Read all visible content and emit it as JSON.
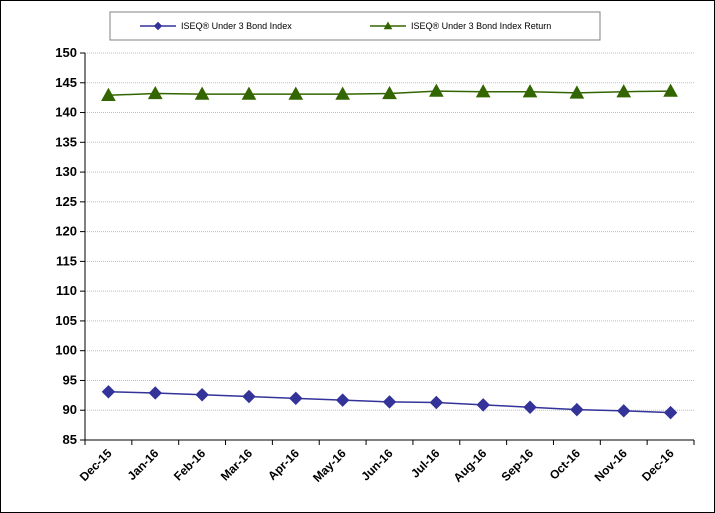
{
  "chart_data": {
    "type": "line",
    "title": "",
    "xlabel": "",
    "ylabel": "",
    "categories": [
      "Dec-15",
      "Jan-16",
      "Feb-16",
      "Mar-16",
      "Apr-16",
      "May-16",
      "Jun-16",
      "Jul-16",
      "Aug-16",
      "Sep-16",
      "Oct-16",
      "Nov-16",
      "Dec-16"
    ],
    "ylim": [
      85,
      150
    ],
    "yticks": [
      "85",
      "90",
      "95",
      "100",
      "105",
      "110",
      "115",
      "120",
      "125",
      "130",
      "135",
      "140",
      "145",
      "150"
    ],
    "grid": true,
    "legend_position": "top",
    "series": [
      {
        "name": "ISEQ® Under 3 Bond Index",
        "color": "#333399",
        "marker": "diamond",
        "values": [
          93.1,
          92.9,
          92.6,
          92.3,
          92.0,
          91.7,
          91.4,
          91.3,
          90.9,
          90.5,
          90.1,
          89.9,
          89.6
        ]
      },
      {
        "name": "ISEQ® Under 3 Bond Index Return",
        "color": "#336600",
        "marker": "triangle",
        "values": [
          142.9,
          143.2,
          143.1,
          143.1,
          143.1,
          143.1,
          143.2,
          143.6,
          143.5,
          143.5,
          143.3,
          143.5,
          143.6
        ]
      }
    ]
  }
}
